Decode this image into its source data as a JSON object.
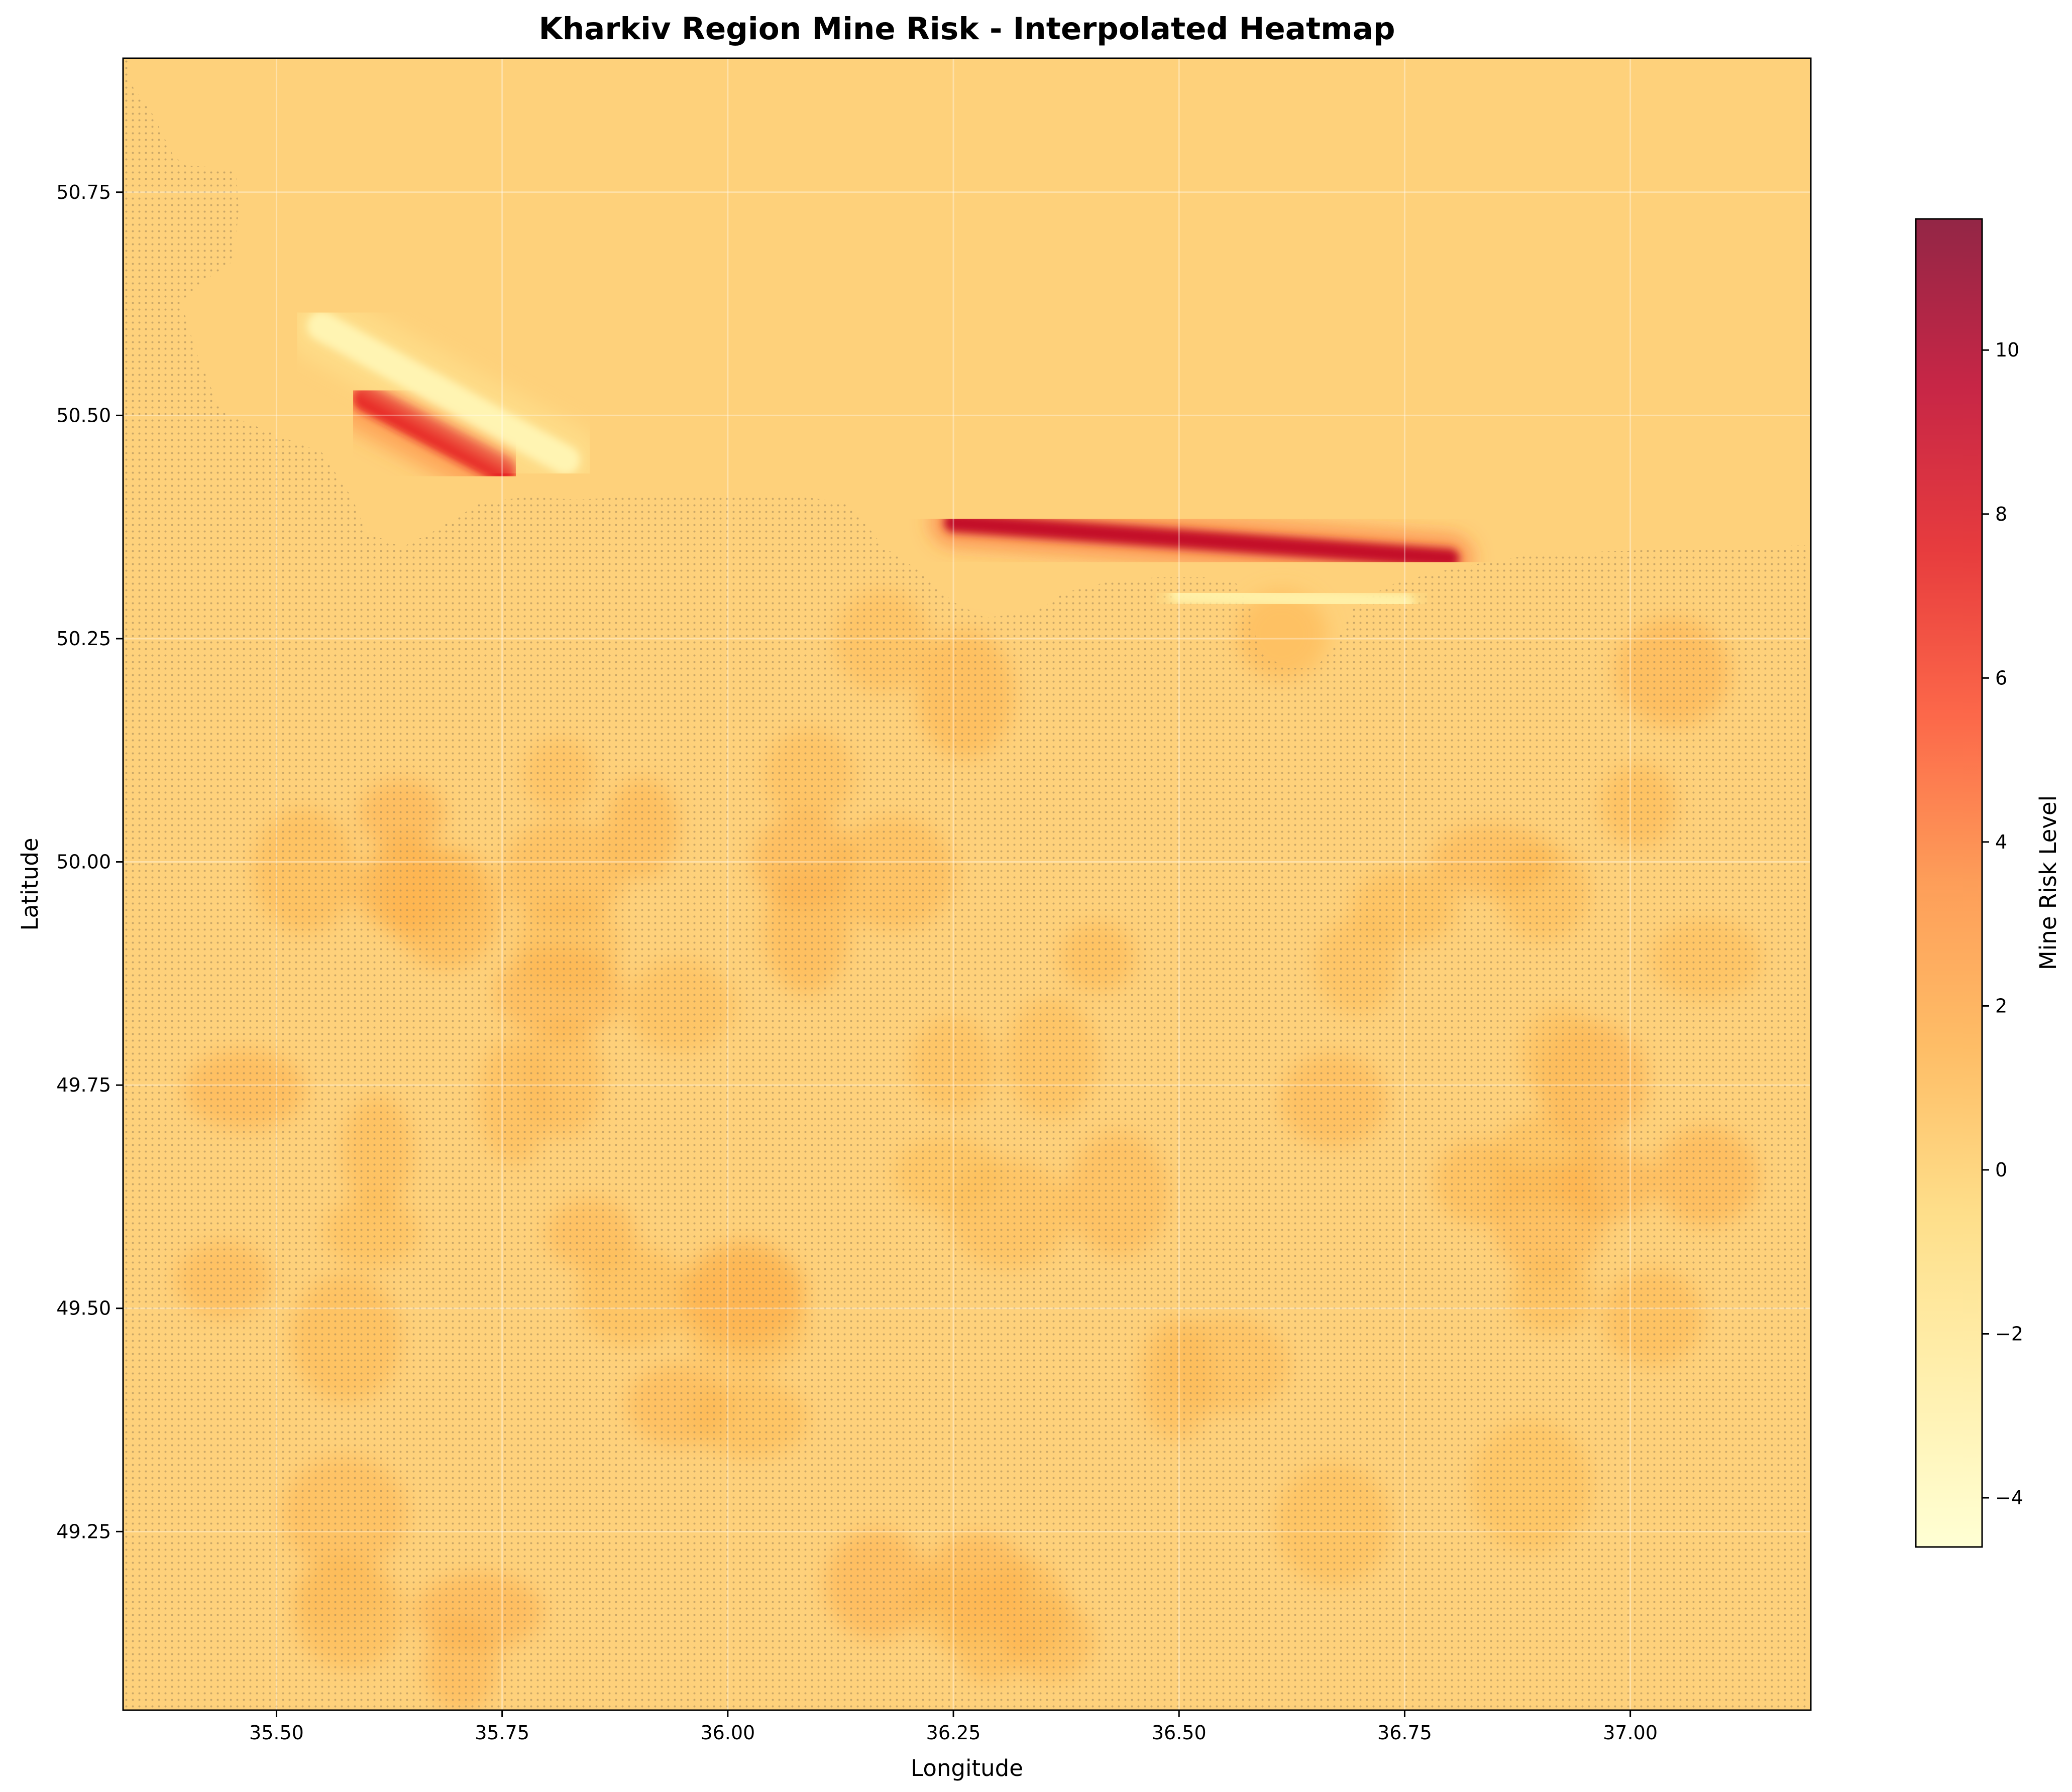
{
  "chart_data": {
    "type": "heatmap",
    "title": "Kharkiv Region Mine Risk - Interpolated Heatmap",
    "xlabel": "Longitude",
    "ylabel": "Latitude",
    "colorbar_label": "Mine Risk Level",
    "xlim": [
      35.33,
      37.2
    ],
    "ylim": [
      49.05,
      50.9
    ],
    "x_ticks": [
      35.5,
      35.75,
      36.0,
      36.25,
      36.5,
      36.75,
      37.0
    ],
    "x_tick_labels": [
      "35.50",
      "35.75",
      "36.00",
      "36.25",
      "36.50",
      "36.75",
      "37.00"
    ],
    "y_ticks": [
      49.25,
      49.5,
      49.75,
      50.0,
      50.25,
      50.5,
      50.75
    ],
    "y_tick_labels": [
      "49.25",
      "49.50",
      "49.75",
      "50.00",
      "50.25",
      "50.50",
      "50.75"
    ],
    "colorbar_range": [
      -4.6,
      11.6
    ],
    "colorbar_ticks": [
      -4,
      -2,
      0,
      2,
      4,
      6,
      8,
      10
    ],
    "colorbar_tick_labels": [
      "−4",
      "−2",
      "0",
      "2",
      "4",
      "6",
      "8",
      "10"
    ],
    "colormap": "YlOrRd",
    "colormap_stops": [
      "#ffffcc",
      "#ffeda0",
      "#fed976",
      "#feb24c",
      "#fd8d3c",
      "#fc4e2a",
      "#e31a1c",
      "#bd0026",
      "#800026"
    ],
    "background_value": 0.3,
    "grid": true,
    "features": [
      {
        "kind": "high-risk ridge",
        "from": [
          35.6,
          50.52
        ],
        "to": [
          35.75,
          50.44
        ],
        "peak": 7.5
      },
      {
        "kind": "low-risk ridge",
        "from": [
          35.55,
          50.6
        ],
        "to": [
          35.82,
          50.45
        ],
        "peak": -3.5
      },
      {
        "kind": "high-risk band",
        "from": [
          36.25,
          50.38
        ],
        "to": [
          36.8,
          50.34
        ],
        "peak": 9.5
      },
      {
        "kind": "low-risk band",
        "from": [
          36.5,
          50.3
        ],
        "to": [
          36.75,
          50.29
        ],
        "peak": -3.0
      }
    ]
  }
}
